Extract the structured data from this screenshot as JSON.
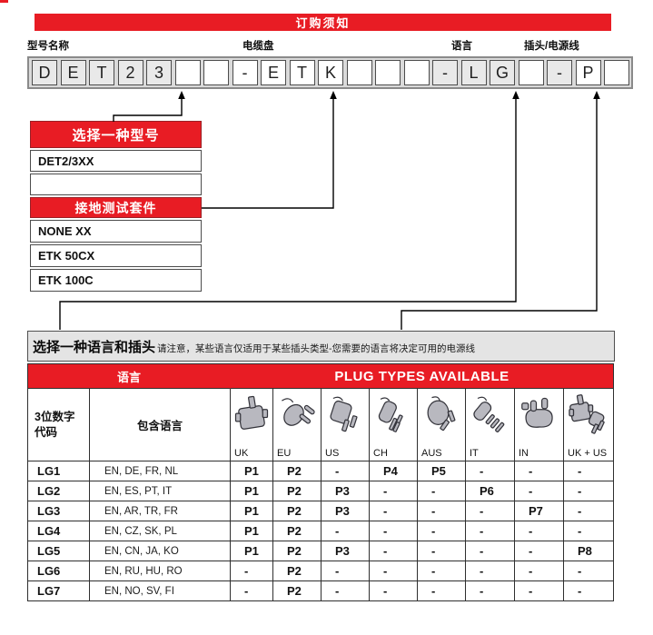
{
  "colors": {
    "red": "#e81c24",
    "cell_shaded": "#e9e9e9",
    "strip_bg": "#dadada",
    "table_border": "#2f2f2f"
  },
  "title_bar": {
    "label": "订购须知"
  },
  "field_labels": [
    {
      "text": "型号名称"
    },
    {
      "text": "电缆盘"
    },
    {
      "text": "语言"
    },
    {
      "text": "插头/电源线"
    }
  ],
  "code_boxes": {
    "cells": [
      {
        "ch": "D",
        "shaded": true
      },
      {
        "ch": "E",
        "shaded": true
      },
      {
        "ch": "T",
        "shaded": true
      },
      {
        "ch": "2",
        "shaded": true
      },
      {
        "ch": "3",
        "shaded": true
      },
      {
        "ch": "",
        "shaded": false
      },
      {
        "ch": "",
        "shaded": false
      },
      {
        "ch": "-",
        "shaded": false
      },
      {
        "ch": "E",
        "shaded": false
      },
      {
        "ch": "T",
        "shaded": false
      },
      {
        "ch": "K",
        "shaded": false
      },
      {
        "ch": "",
        "shaded": false
      },
      {
        "ch": "",
        "shaded": false
      },
      {
        "ch": "",
        "shaded": false
      },
      {
        "ch": "-",
        "shaded": true
      },
      {
        "ch": "L",
        "shaded": true
      },
      {
        "ch": "G",
        "shaded": true
      },
      {
        "ch": "",
        "shaded": false
      },
      {
        "ch": "-",
        "shaded": true
      },
      {
        "ch": "P",
        "shaded": false
      },
      {
        "ch": "",
        "shaded": false
      }
    ]
  },
  "model_box": {
    "header": "选择一种型号",
    "rows": [
      "DET2/3XX",
      ""
    ]
  },
  "kit_box": {
    "header": "接地测试套件",
    "rows": [
      "NONE XX",
      "ETK 50CX",
      "ETK 100C"
    ]
  },
  "language_section": {
    "title": "选择一种语言和插头",
    "note": "请注意，某些语言仅适用于某些插头类型-您需要的语言将决定可用的电源线"
  },
  "table": {
    "header_language": "语言",
    "header_plugs": "PLUG TYPES AVAILABLE",
    "col_code_header": [
      "3位数字",
      "代码"
    ],
    "col_languages_header": "包含语言",
    "plug_columns": [
      {
        "label": "UK",
        "icon": "uk-plug-icon"
      },
      {
        "label": "EU",
        "icon": "eu-plug-icon"
      },
      {
        "label": "US",
        "icon": "us-plug-icon"
      },
      {
        "label": "CH",
        "icon": "ch-plug-icon"
      },
      {
        "label": "AUS",
        "icon": "aus-plug-icon"
      },
      {
        "label": "IT",
        "icon": "it-plug-icon"
      },
      {
        "label": "IN",
        "icon": "in-plug-icon"
      },
      {
        "label": "UK + US",
        "icon": "uk-us-plug-icon"
      }
    ],
    "rows": [
      {
        "code": "LG1",
        "languages": "EN, DE, FR, NL",
        "plugs": [
          "P1",
          "P2",
          "-",
          "P4",
          "P5",
          "-",
          "-",
          "-"
        ]
      },
      {
        "code": "LG2",
        "languages": "EN, ES, PT, IT",
        "plugs": [
          "P1",
          "P2",
          "P3",
          "-",
          "-",
          "P6",
          "-",
          "-"
        ]
      },
      {
        "code": "LG3",
        "languages": "EN, AR, TR, FR",
        "plugs": [
          "P1",
          "P2",
          "P3",
          "-",
          "-",
          "-",
          "P7",
          "-"
        ]
      },
      {
        "code": "LG4",
        "languages": "EN, CZ, SK, PL",
        "plugs": [
          "P1",
          "P2",
          "-",
          "-",
          "-",
          "-",
          "-",
          "-"
        ]
      },
      {
        "code": "LG5",
        "languages": "EN, CN, JA, KO",
        "plugs": [
          "P1",
          "P2",
          "P3",
          "-",
          "-",
          "-",
          "-",
          "P8"
        ]
      },
      {
        "code": "LG6",
        "languages": "EN, RU, HU, RO",
        "plugs": [
          "-",
          "P2",
          "-",
          "-",
          "-",
          "-",
          "-",
          "-"
        ]
      },
      {
        "code": "LG7",
        "languages": "EN, NO, SV, FI",
        "plugs": [
          "-",
          "P2",
          "-",
          "-",
          "-",
          "-",
          "-",
          "-"
        ]
      }
    ]
  }
}
